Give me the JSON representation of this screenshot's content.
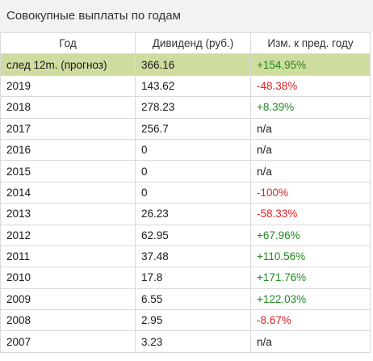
{
  "title": "Совокупные выплаты по годам",
  "columns": [
    "Год",
    "Дивиденд (руб.)",
    "Изм. к пред. году"
  ],
  "rows": [
    {
      "year": "след 12m. (прогноз)",
      "dividend": "366.16",
      "change": "+154.95%",
      "trend": "pos",
      "forecast": true
    },
    {
      "year": "2019",
      "dividend": "143.62",
      "change": "-48.38%",
      "trend": "neg"
    },
    {
      "year": "2018",
      "dividend": "278.23",
      "change": "+8.39%",
      "trend": "pos"
    },
    {
      "year": "2017",
      "dividend": "256.7",
      "change": "n/a",
      "trend": "na"
    },
    {
      "year": "2016",
      "dividend": "0",
      "change": "n/a",
      "trend": "na"
    },
    {
      "year": "2015",
      "dividend": "0",
      "change": "n/a",
      "trend": "na"
    },
    {
      "year": "2014",
      "dividend": "0",
      "change": "-100%",
      "trend": "neg"
    },
    {
      "year": "2013",
      "dividend": "26.23",
      "change": "-58.33%",
      "trend": "neg"
    },
    {
      "year": "2012",
      "dividend": "62.95",
      "change": "+67.96%",
      "trend": "pos"
    },
    {
      "year": "2011",
      "dividend": "37.48",
      "change": "+110.56%",
      "trend": "pos"
    },
    {
      "year": "2010",
      "dividend": "17.8",
      "change": "+171.76%",
      "trend": "pos"
    },
    {
      "year": "2009",
      "dividend": "6.55",
      "change": "+122.03%",
      "trend": "pos"
    },
    {
      "year": "2008",
      "dividend": "2.95",
      "change": "-8.67%",
      "trend": "neg"
    },
    {
      "year": "2007",
      "dividend": "3.23",
      "change": "n/a",
      "trend": "na"
    }
  ],
  "colors": {
    "positive": "#1f8a1f",
    "negative": "#e02020",
    "forecast_row": "#cfdca0",
    "header_bg": "#f2f2f2"
  }
}
